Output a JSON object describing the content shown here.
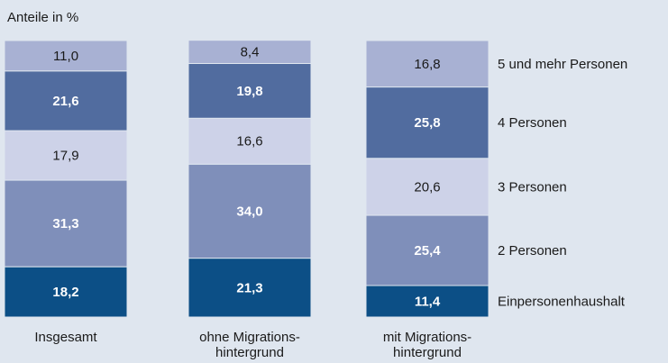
{
  "chart_data": {
    "type": "stacked_bar",
    "ylabel": "Anteile in %",
    "categories": [
      "Insgesamt",
      "ohne Migrations-\nhintergrund",
      "mit Migrations-\nhintergrund"
    ],
    "ylim": [
      0,
      100
    ],
    "series": [
      {
        "name": "Einpersonenhaushalt",
        "color": "#0c4f86",
        "label_color": "#ffffff",
        "values": [
          18.2,
          21.3,
          11.4
        ],
        "value_labels": [
          "18,2",
          "21,3",
          "11,4"
        ]
      },
      {
        "name": "2 Personen",
        "color": "#7f8fba",
        "label_color": "#ffffff",
        "values": [
          31.3,
          34.0,
          25.4
        ],
        "value_labels": [
          "31,3",
          "34,0",
          "25,4"
        ]
      },
      {
        "name": "3 Personen",
        "color": "#cdd2e8",
        "label_color": "#1a1a1a",
        "values": [
          17.9,
          16.6,
          20.6
        ],
        "value_labels": [
          "17,9",
          "16,6",
          "20,6"
        ]
      },
      {
        "name": "4 Personen",
        "color": "#516c9f",
        "label_color": "#ffffff",
        "values": [
          21.6,
          19.8,
          25.8
        ],
        "value_labels": [
          "21,6",
          "19,8",
          "25,8"
        ]
      },
      {
        "name": "5 und mehr Personen",
        "color": "#a8b1d3",
        "label_color": "#1a1a1a",
        "values": [
          11.0,
          8.4,
          16.8
        ],
        "value_labels": [
          "11,0",
          "8,4",
          "16,8"
        ]
      }
    ]
  }
}
